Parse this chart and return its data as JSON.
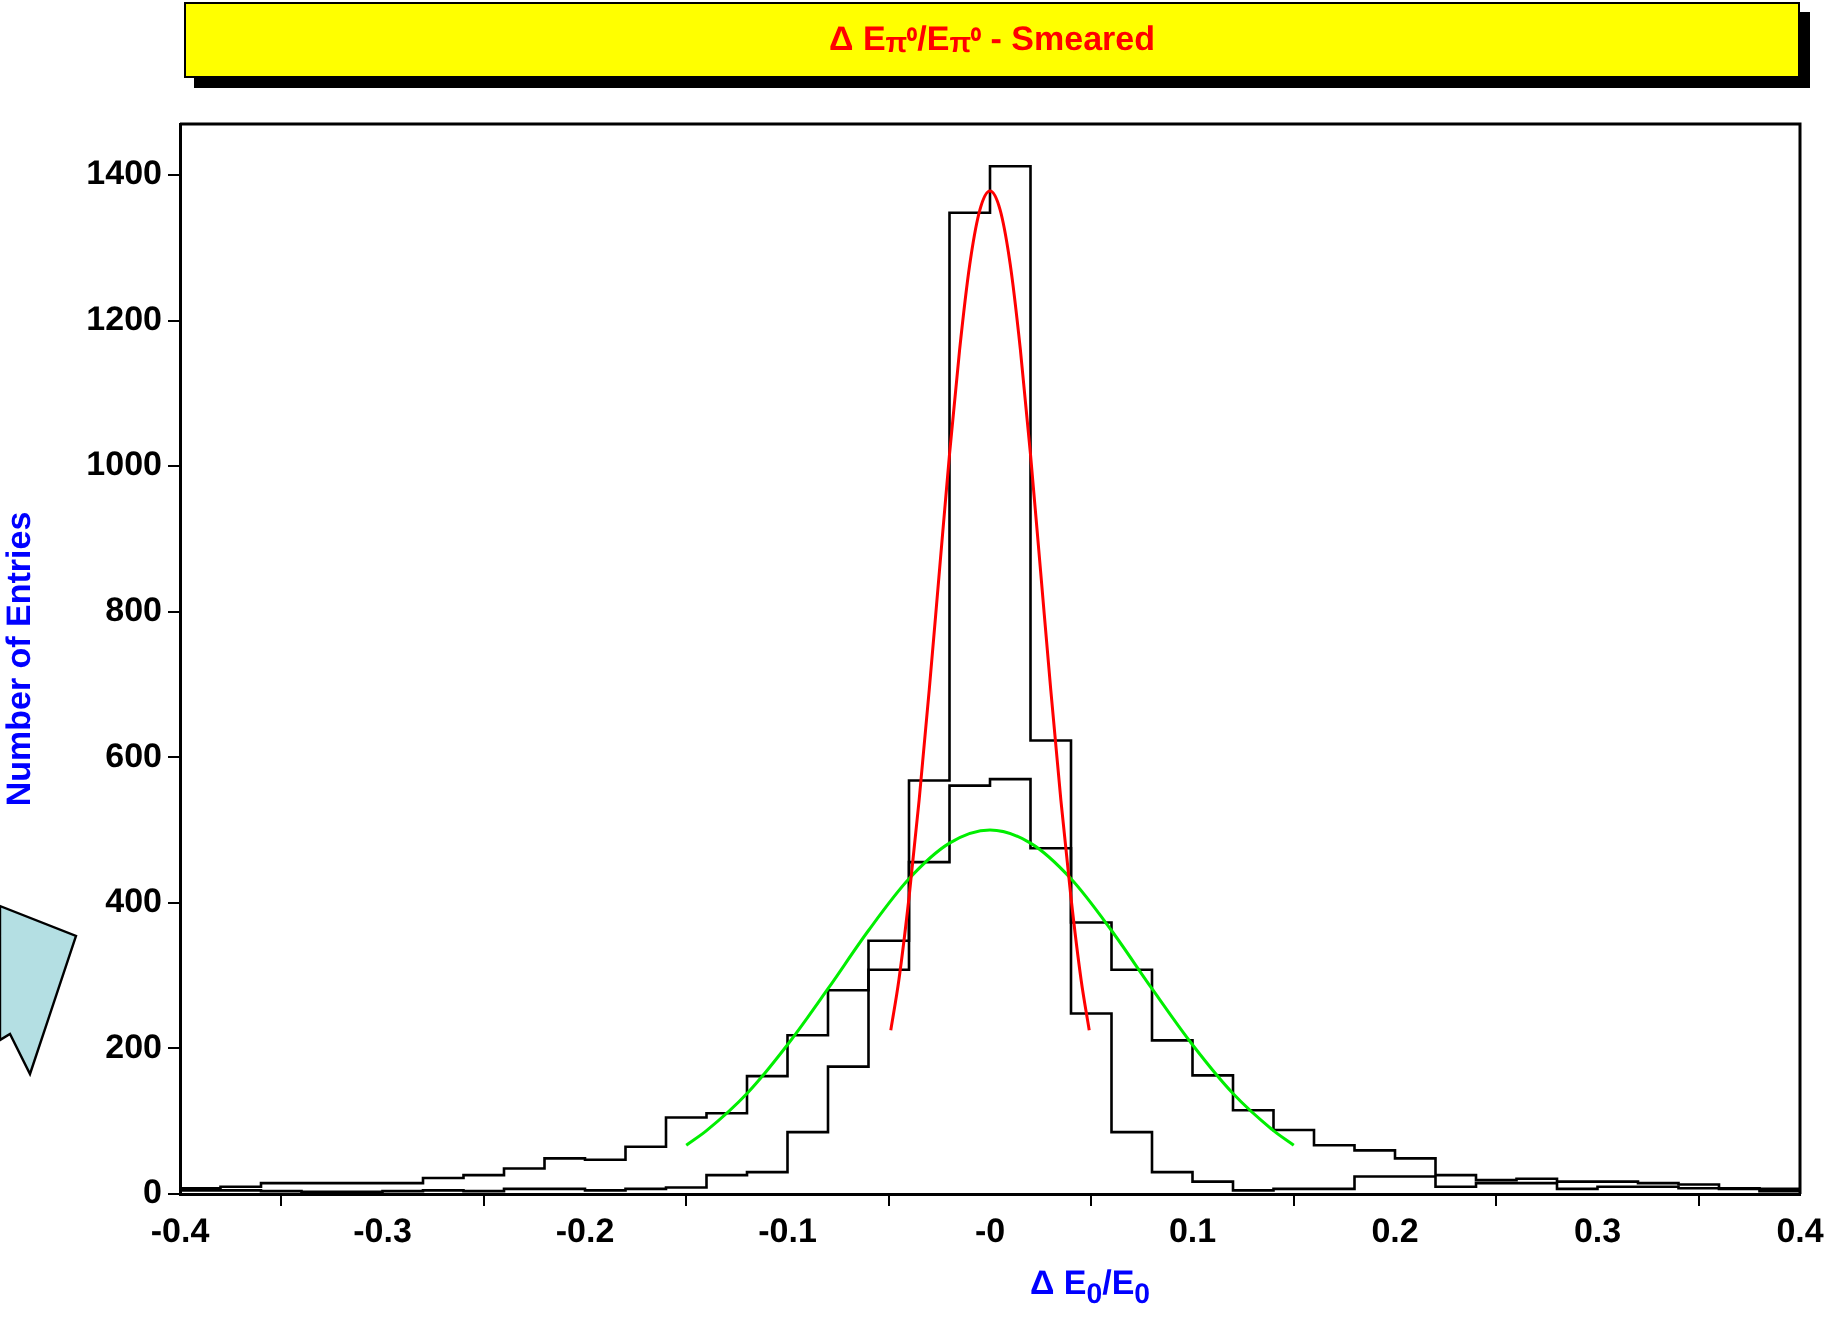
{
  "chart_data": {
    "type": "histogram",
    "title": "Δ E$_{π⁰}$/E$_{π⁰}$ - Smeared",
    "xlabel": "Δ E$_{0}$/E$_{0}$",
    "ylabel": "Number of Entries",
    "bins": [
      -0.4,
      -0.38,
      -0.36,
      -0.34,
      -0.32,
      -0.3,
      -0.28,
      -0.26,
      -0.24,
      -0.22,
      -0.2,
      -0.18,
      -0.16,
      -0.14,
      -0.12,
      -0.1,
      -0.08,
      -0.06,
      -0.04,
      -0.02,
      0,
      0.02,
      0.04,
      0.06,
      0.08,
      0.1,
      0.12,
      0.14,
      0.16,
      0.18,
      0.2,
      0.22,
      0.24,
      0.26,
      0.28,
      0.3,
      0.32,
      0.34,
      0.36,
      0.38,
      0.4
    ],
    "series": [
      {
        "color": "#000000",
        "values": [
          5,
          5,
          4,
          3,
          3,
          4,
          5,
          4,
          7,
          7,
          5,
          7,
          9,
          26,
          30,
          85,
          175,
          308,
          568,
          1348,
          1412,
          623,
          248,
          85,
          30,
          17,
          5,
          7,
          7,
          24,
          24,
          10,
          15,
          15,
          7,
          10,
          10,
          8,
          7,
          4
        ]
      },
      {
        "color": "#000000",
        "values": [
          8,
          10,
          15,
          15,
          15,
          15,
          22,
          26,
          35,
          49,
          47,
          65,
          105,
          111,
          162,
          218,
          280,
          348,
          456,
          561,
          570,
          475,
          373,
          308,
          211,
          163,
          115,
          88,
          67,
          60,
          49,
          26,
          19,
          21,
          17,
          17,
          15,
          13,
          8,
          7
        ]
      },
      {
        "type": "line",
        "color": "#ff0000",
        "x": [
          -0.049,
          -0.045,
          -0.04,
          -0.035,
          -0.03,
          -0.025,
          -0.02,
          -0.015,
          -0.01,
          -0.005,
          0,
          0.005,
          0.01,
          0.015,
          0.02,
          0.025,
          0.03,
          0.035,
          0.04,
          0.045,
          0.049
        ],
        "values": [
          225,
          294,
          407,
          541,
          693,
          855,
          1016,
          1160,
          1277,
          1352,
          1378,
          1352,
          1277,
          1160,
          1016,
          855,
          693,
          541,
          407,
          294,
          225
        ]
      },
      {
        "type": "line",
        "color": "#00ee00",
        "x": [
          -0.15,
          -0.14,
          -0.12,
          -0.1,
          -0.08,
          -0.06,
          -0.04,
          -0.02,
          0,
          0.02,
          0.04,
          0.06,
          0.08,
          0.1,
          0.12,
          0.14,
          0.15
        ],
        "values": [
          67,
          87,
          138,
          205,
          282,
          362,
          433,
          482,
          500,
          482,
          433,
          362,
          282,
          205,
          138,
          87,
          67
        ]
      }
    ],
    "xlim": [
      -0.4,
      0.4
    ],
    "xticks": [
      -0.4,
      -0.3,
      -0.2,
      -0.1,
      {
        "value": 0,
        "label": "-0"
      },
      0.1,
      0.2,
      0.3,
      0.4
    ],
    "ylim": [
      0,
      1470
    ],
    "yticks": [
      0,
      200,
      400,
      600,
      800,
      1000,
      1200,
      1400
    ],
    "grid": false,
    "legend": false,
    "marker": "none"
  }
}
